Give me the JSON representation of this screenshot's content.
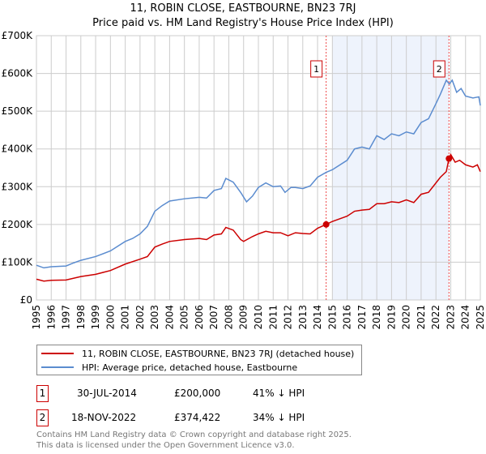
{
  "chart_data": {
    "type": "line",
    "title": "11, ROBIN CLOSE, EASTBOURNE, BN23 7RJ",
    "subtitle": "Price paid vs. HM Land Registry's House Price Index (HPI)",
    "xlim": [
      1995,
      2025
    ],
    "ylim": [
      0,
      700000
    ],
    "x_ticks": [
      "1995",
      "1996",
      "1997",
      "1998",
      "1999",
      "2000",
      "2001",
      "2002",
      "2003",
      "2004",
      "2005",
      "2006",
      "2007",
      "2008",
      "2009",
      "2010",
      "2011",
      "2012",
      "2013",
      "2014",
      "2015",
      "2016",
      "2017",
      "2018",
      "2019",
      "2020",
      "2021",
      "2022",
      "2023",
      "2024",
      "2025"
    ],
    "y_ticks": [
      {
        "v": 0,
        "l": "£0"
      },
      {
        "v": 100000,
        "l": "£100K"
      },
      {
        "v": 200000,
        "l": "£200K"
      },
      {
        "v": 300000,
        "l": "£300K"
      },
      {
        "v": 400000,
        "l": "£400K"
      },
      {
        "v": 500000,
        "l": "£500K"
      },
      {
        "v": 600000,
        "l": "£600K"
      },
      {
        "v": 700000,
        "l": "£700K"
      }
    ],
    "shaded_range": [
      2015,
      2022.88
    ],
    "series": [
      {
        "name": "11, ROBIN CLOSE, EASTBOURNE, BN23 7RJ (detached house)",
        "color": "#cc0000",
        "x": [
          1995,
          1995.5,
          1996,
          1997,
          1998,
          1999,
          2000,
          2001,
          2002,
          2002.5,
          2003,
          2003.5,
          2004,
          2005,
          2006,
          2006.5,
          2007,
          2007.5,
          2007.8,
          2008.3,
          2008.8,
          2009,
          2009.6,
          2010,
          2010.5,
          2011,
          2011.5,
          2012,
          2012.5,
          2013,
          2013.5,
          2014,
          2014.58,
          2015,
          2016,
          2016.5,
          2017,
          2017.5,
          2018,
          2018.5,
          2019,
          2019.5,
          2020,
          2020.5,
          2021,
          2021.5,
          2022,
          2022.3,
          2022.7,
          2022.88,
          2023,
          2023.3,
          2023.6,
          2024,
          2024.5,
          2024.8,
          2025
        ],
        "y": [
          55,
          50,
          52,
          53,
          62,
          68,
          78,
          95,
          108,
          115,
          140,
          148,
          155,
          160,
          163,
          160,
          172,
          175,
          192,
          185,
          160,
          155,
          168,
          175,
          182,
          178,
          178,
          170,
          178,
          176,
          175,
          190,
          200,
          208,
          222,
          235,
          238,
          240,
          255,
          255,
          260,
          258,
          265,
          258,
          280,
          285,
          310,
          325,
          340,
          374.4,
          385,
          365,
          370,
          358,
          352,
          358,
          340
        ]
      },
      {
        "name": "HPI: Average price, detached house, Eastbourne",
        "color": "#5b8ccf",
        "x": [
          1995,
          1995.5,
          1996,
          1997,
          1997.5,
          1998,
          1999,
          2000,
          2001,
          2001.5,
          2002,
          2002.5,
          2003,
          2003.5,
          2004,
          2005,
          2006,
          2006.5,
          2007,
          2007.5,
          2007.8,
          2008.3,
          2008.8,
          2009.2,
          2009.6,
          2010,
          2010.5,
          2011,
          2011.5,
          2011.8,
          2012.2,
          2012.5,
          2013,
          2013.5,
          2014,
          2014.58,
          2015,
          2016,
          2016.5,
          2017,
          2017.5,
          2018,
          2018.5,
          2019,
          2019.5,
          2020,
          2020.5,
          2021,
          2021.5,
          2022,
          2022.3,
          2022.7,
          2022.9,
          2023.1,
          2023.4,
          2023.7,
          2024,
          2024.5,
          2024.9,
          2025
        ],
        "y": [
          92,
          85,
          88,
          90,
          98,
          105,
          115,
          130,
          155,
          163,
          175,
          195,
          235,
          250,
          262,
          268,
          272,
          270,
          290,
          295,
          322,
          312,
          285,
          260,
          275,
          298,
          310,
          300,
          302,
          285,
          298,
          298,
          295,
          302,
          325,
          338,
          345,
          370,
          400,
          405,
          400,
          435,
          425,
          440,
          435,
          445,
          440,
          470,
          480,
          520,
          545,
          582,
          572,
          582,
          550,
          560,
          540,
          535,
          538,
          515
        ]
      }
    ],
    "sales": [
      {
        "n": "1",
        "x": 2014.58,
        "y": 200
      },
      {
        "n": "2",
        "x": 2022.88,
        "y": 374.4
      }
    ]
  },
  "legend": [
    "11, ROBIN CLOSE, EASTBOURNE, BN23 7RJ (detached house)",
    "HPI: Average price, detached house, Eastbourne"
  ],
  "table": [
    {
      "n": "1",
      "date": "30-JUL-2014",
      "price": "£200,000",
      "hpi": "41% ↓ HPI"
    },
    {
      "n": "2",
      "date": "18-NOV-2022",
      "price": "£374,422",
      "hpi": "34% ↓ HPI"
    }
  ],
  "footer": [
    "Contains HM Land Registry data © Crown copyright and database right 2025.",
    "This data is licensed under the Open Government Licence v3.0."
  ]
}
